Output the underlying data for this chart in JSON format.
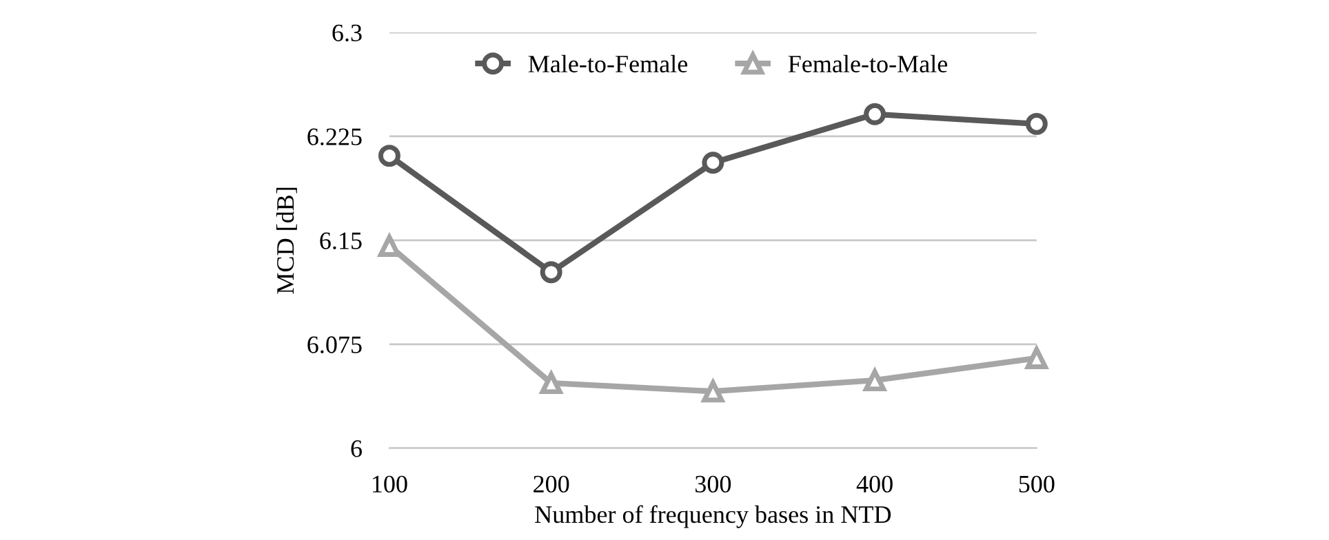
{
  "chart_data": {
    "type": "line",
    "xlabel": "Number of frequency bases in NTD",
    "ylabel": "MCD [dB]",
    "x": [
      100,
      200,
      300,
      400,
      500
    ],
    "series": [
      {
        "name": "Male-to-Female",
        "color": "#595959",
        "marker": "circle",
        "values": [
          6.211,
          6.127,
          6.206,
          6.241,
          6.234
        ]
      },
      {
        "name": "Female-to-Male",
        "color": "#a6a6a6",
        "marker": "triangle",
        "values": [
          6.146,
          6.047,
          6.041,
          6.049,
          6.065
        ]
      }
    ],
    "xlim": [
      100,
      500
    ],
    "xticks": [
      100,
      200,
      300,
      400,
      500
    ],
    "ylim": [
      6,
      6.3
    ],
    "yticks": [
      6,
      6.075,
      6.15,
      6.225,
      6.3
    ],
    "grid": "y",
    "legend": "top",
    "line_style": "solid"
  }
}
